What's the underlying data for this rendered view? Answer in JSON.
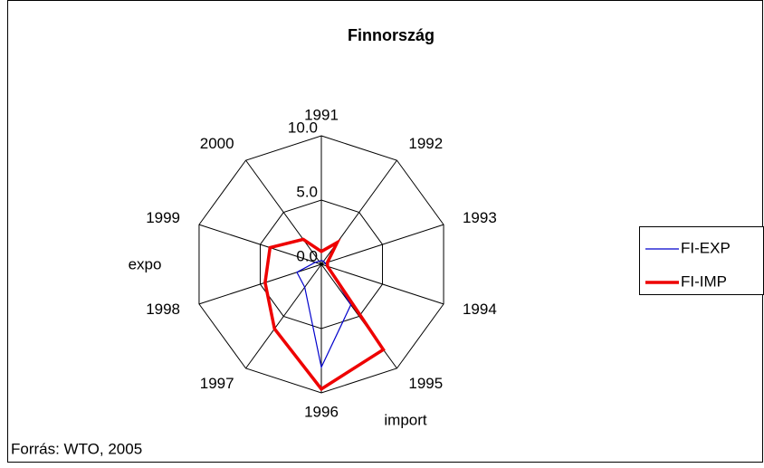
{
  "chart_data": {
    "type": "radar",
    "title": "Finnország",
    "categories": [
      "1991",
      "1992",
      "1993",
      "1994",
      "1995",
      "1996",
      "1997",
      "1998",
      "1999",
      "2000"
    ],
    "series": [
      {
        "name": "FI-EXP",
        "color": "#0000cc",
        "values": [
          0.3,
          0.3,
          0.3,
          0.5,
          3.9,
          8.0,
          2.2,
          2.0,
          0.5,
          0.3
        ]
      },
      {
        "name": "FI-IMP",
        "color": "#ee0000",
        "values": [
          1.0,
          2.1,
          0.5,
          0.5,
          8.2,
          9.7,
          6.2,
          4.6,
          4.2,
          2.4
        ]
      }
    ],
    "rlim": [
      0,
      10
    ],
    "rticks": [
      {
        "value": 0,
        "label": "0.0"
      },
      {
        "value": 5,
        "label": "5.0"
      },
      {
        "value": 10,
        "label": "10.0"
      }
    ],
    "annotations": [
      "expo",
      "import"
    ],
    "source": "Forrás: WTO, 2005",
    "legend": "right"
  }
}
